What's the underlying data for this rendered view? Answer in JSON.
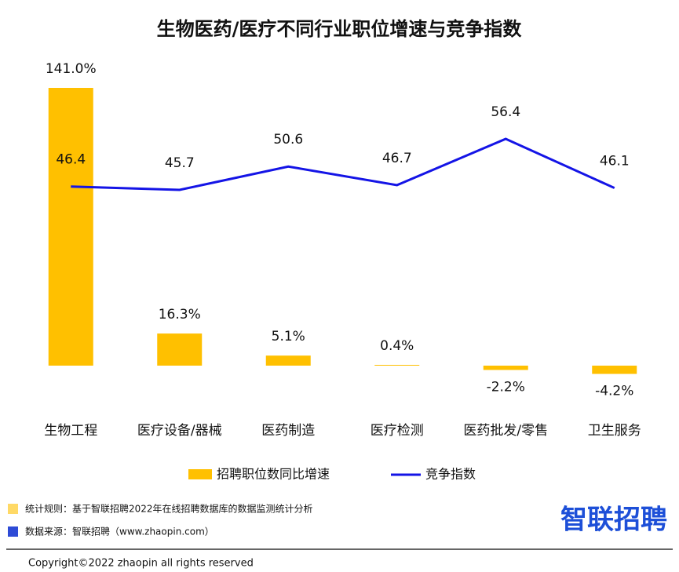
{
  "chart_data": {
    "type": "bar-line",
    "title": "生物医药/医疗不同行业职位增速与竞争指数",
    "categories": [
      "生物工程",
      "医疗设备/器械",
      "医药制造",
      "医疗检测",
      "医药批发/零售",
      "卫生服务"
    ],
    "series": [
      {
        "name": "招聘职位数同比增速",
        "type": "bar",
        "color": "#ffc000",
        "values": [
          141.0,
          16.3,
          5.1,
          0.4,
          -2.2,
          -4.2
        ],
        "value_labels": [
          "141.0%",
          "16.3%",
          "5.1%",
          "0.4%",
          "-2.2%",
          "-4.2%"
        ]
      },
      {
        "name": "竞争指数",
        "type": "line",
        "color": "#1414e6",
        "values": [
          46.4,
          45.7,
          50.6,
          46.7,
          56.4,
          46.1
        ]
      }
    ]
  },
  "notes": [
    "统计规则：基于智联招聘2022年在线招聘数据库的数据监测统计分析",
    "数据来源：智联招聘（www.zhaopin.com）"
  ],
  "logo": "智联招聘",
  "copyright": "Copyright©2022 zhaopin all rights reserved"
}
